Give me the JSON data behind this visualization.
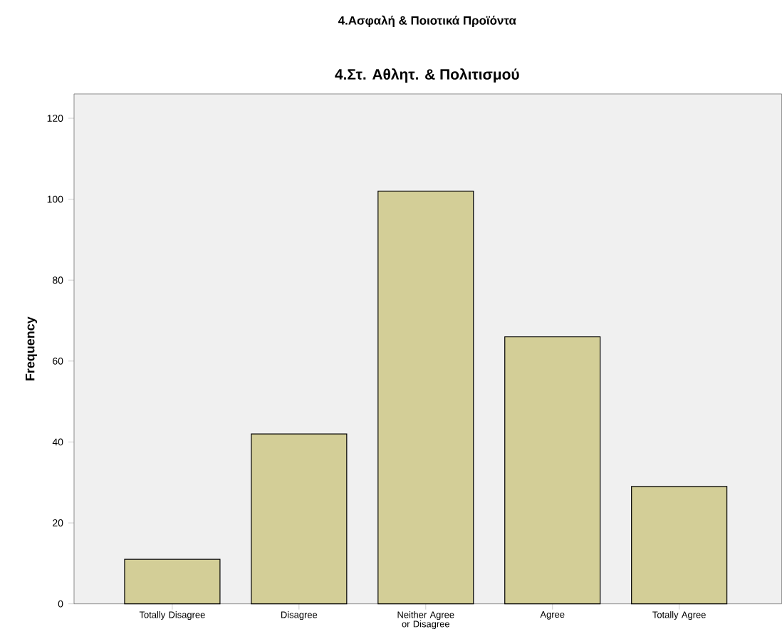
{
  "chart_data": {
    "type": "bar",
    "title": "4.Ασφαλή & Ποιοτικά Προϊόντα",
    "subtitle": "4.Στ. Αθλητ. & Πολιτισμού",
    "ylabel": "Frequency",
    "categories": [
      "Totally Disagree",
      "Disagree",
      "Neither Agree or Disagree",
      "Agree",
      "Totally Agree"
    ],
    "values": [
      11,
      42,
      102,
      66,
      29
    ],
    "color": "#d3ce97",
    "ylim": [
      0,
      126
    ],
    "yticks": [
      0,
      20,
      40,
      60,
      80,
      100,
      120
    ],
    "grid": false
  }
}
